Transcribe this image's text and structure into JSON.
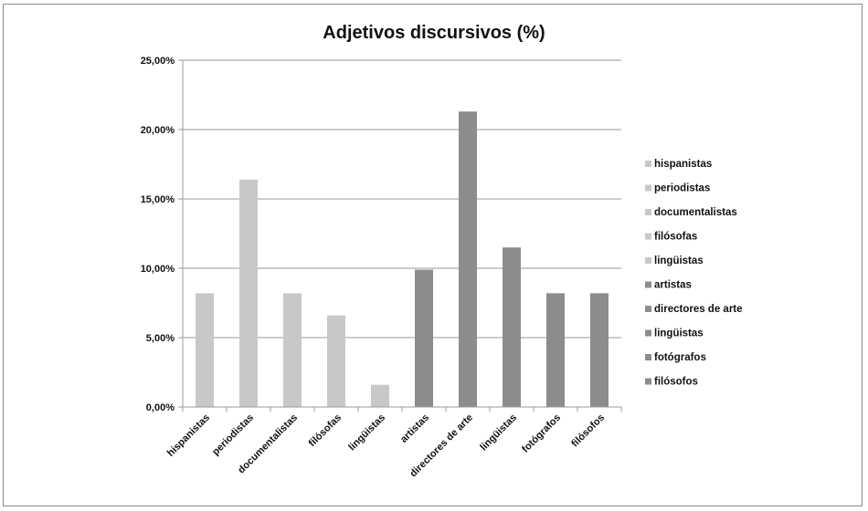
{
  "chart_data": {
    "type": "bar",
    "title": "Adjetivos discursivos (%)",
    "xlabel": "",
    "ylabel": "",
    "ylim": [
      0,
      25
    ],
    "yticks": [
      "0,00%",
      "5,00%",
      "10,00%",
      "15,00%",
      "20,00%",
      "25,00%"
    ],
    "grid": true,
    "legend_position": "right",
    "categories": [
      "hispanistas",
      "periodistas",
      "documentalistas",
      "filósofas",
      "lingüistas",
      "artistas",
      "directores de arte",
      "lingüistas",
      "fotógrafos",
      "filósofos"
    ],
    "values": [
      8.2,
      16.4,
      8.2,
      6.6,
      1.6,
      9.9,
      21.3,
      11.5,
      8.2,
      8.2
    ],
    "colors": [
      "#c8c8c8",
      "#c8c8c8",
      "#c8c8c8",
      "#c8c8c8",
      "#c8c8c8",
      "#8c8c8c",
      "#8c8c8c",
      "#8c8c8c",
      "#8c8c8c",
      "#8c8c8c"
    ],
    "legend": [
      "hispanistas",
      "periodistas",
      "documentalistas",
      "filósofas",
      "lingüistas",
      "artistas",
      "directores de arte",
      "lingüistas",
      "fotógrafos",
      "filósofos"
    ]
  }
}
